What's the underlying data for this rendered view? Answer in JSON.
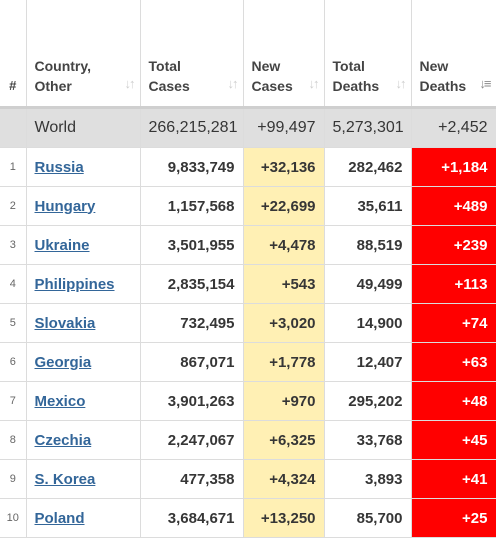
{
  "headers": {
    "index": "#",
    "country": [
      "Country,",
      "Other"
    ],
    "total_cases": [
      "Total",
      "Cases"
    ],
    "new_cases": [
      "New",
      "Cases"
    ],
    "total_deaths": [
      "Total",
      "Deaths"
    ],
    "new_deaths": [
      "New",
      "Deaths"
    ]
  },
  "world": {
    "name": "World",
    "total_cases": "266,215,281",
    "new_cases": "+99,497",
    "total_deaths": "5,273,301",
    "new_deaths": "+2,452"
  },
  "rows": [
    {
      "idx": "1",
      "country": "Russia",
      "total_cases": "9,833,749",
      "new_cases": "+32,136",
      "total_deaths": "282,462",
      "new_deaths": "+1,184"
    },
    {
      "idx": "2",
      "country": "Hungary",
      "total_cases": "1,157,568",
      "new_cases": "+22,699",
      "total_deaths": "35,611",
      "new_deaths": "+489"
    },
    {
      "idx": "3",
      "country": "Ukraine",
      "total_cases": "3,501,955",
      "new_cases": "+4,478",
      "total_deaths": "88,519",
      "new_deaths": "+239"
    },
    {
      "idx": "4",
      "country": "Philippines",
      "total_cases": "2,835,154",
      "new_cases": "+543",
      "total_deaths": "49,499",
      "new_deaths": "+113"
    },
    {
      "idx": "5",
      "country": "Slovakia",
      "total_cases": "732,495",
      "new_cases": "+3,020",
      "total_deaths": "14,900",
      "new_deaths": "+74"
    },
    {
      "idx": "6",
      "country": "Georgia",
      "total_cases": "867,071",
      "new_cases": "+1,778",
      "total_deaths": "12,407",
      "new_deaths": "+63"
    },
    {
      "idx": "7",
      "country": "Mexico",
      "total_cases": "3,901,263",
      "new_cases": "+970",
      "total_deaths": "295,202",
      "new_deaths": "+48"
    },
    {
      "idx": "8",
      "country": "Czechia",
      "total_cases": "2,247,067",
      "new_cases": "+6,325",
      "total_deaths": "33,768",
      "new_deaths": "+45"
    },
    {
      "idx": "9",
      "country": "S. Korea",
      "total_cases": "477,358",
      "new_cases": "+4,324",
      "total_deaths": "3,893",
      "new_deaths": "+41"
    },
    {
      "idx": "10",
      "country": "Poland",
      "total_cases": "3,684,671",
      "new_cases": "+13,250",
      "total_deaths": "85,700",
      "new_deaths": "+25"
    }
  ],
  "colors": {
    "new_deaths_bg": "#ff0000",
    "new_cases_bg": "#fff0b4",
    "world_row_bg": "#dfdfdf",
    "link": "#336699"
  }
}
